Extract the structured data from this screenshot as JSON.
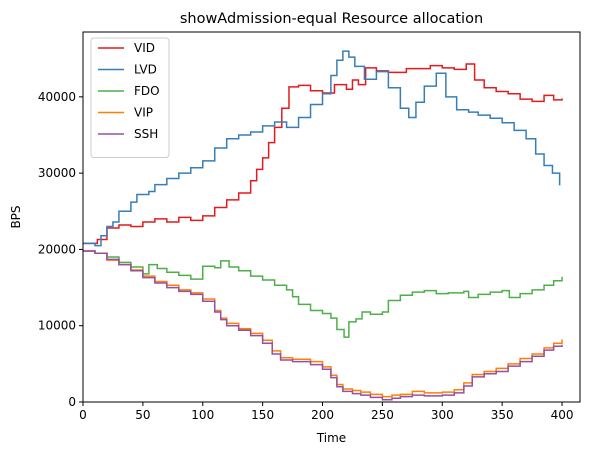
{
  "chart_data": {
    "type": "line",
    "title": "showAdmission-equal Resource allocation",
    "xlabel": "Time",
    "ylabel": "BPS",
    "xlim": [
      0,
      415
    ],
    "ylim": [
      0,
      48500
    ],
    "x_ticks": [
      0,
      50,
      100,
      150,
      200,
      250,
      300,
      350,
      400
    ],
    "y_ticks": [
      0,
      10000,
      20000,
      30000,
      40000
    ],
    "grid": false,
    "legend_position": "top-left",
    "step": true,
    "series": [
      {
        "name": "VID",
        "color": "#e41a1c",
        "points": [
          [
            0,
            20800
          ],
          [
            12,
            21300
          ],
          [
            20,
            22800
          ],
          [
            30,
            23200
          ],
          [
            40,
            23000
          ],
          [
            50,
            23600
          ],
          [
            60,
            24000
          ],
          [
            70,
            23600
          ],
          [
            80,
            24200
          ],
          [
            90,
            23800
          ],
          [
            100,
            24400
          ],
          [
            110,
            25500
          ],
          [
            120,
            26500
          ],
          [
            130,
            27400
          ],
          [
            140,
            29000
          ],
          [
            145,
            30500
          ],
          [
            150,
            32000
          ],
          [
            155,
            34000
          ],
          [
            160,
            36000
          ],
          [
            166,
            38500
          ],
          [
            172,
            41300
          ],
          [
            180,
            41500
          ],
          [
            190,
            40800
          ],
          [
            200,
            40500
          ],
          [
            210,
            41600
          ],
          [
            220,
            41000
          ],
          [
            225,
            42200
          ],
          [
            230,
            41600
          ],
          [
            236,
            43800
          ],
          [
            245,
            43400
          ],
          [
            255,
            43200
          ],
          [
            270,
            43700
          ],
          [
            290,
            44100
          ],
          [
            300,
            43800
          ],
          [
            310,
            43600
          ],
          [
            320,
            44300
          ],
          [
            327,
            42200
          ],
          [
            335,
            41200
          ],
          [
            345,
            40700
          ],
          [
            355,
            40400
          ],
          [
            365,
            39700
          ],
          [
            375,
            39400
          ],
          [
            385,
            40200
          ],
          [
            393,
            39600
          ],
          [
            400,
            39800
          ]
        ]
      },
      {
        "name": "LVD",
        "color": "#377eb8",
        "points": [
          [
            0,
            20800
          ],
          [
            10,
            20500
          ],
          [
            15,
            21800
          ],
          [
            20,
            23000
          ],
          [
            25,
            23600
          ],
          [
            30,
            25000
          ],
          [
            40,
            26200
          ],
          [
            45,
            27200
          ],
          [
            55,
            27600
          ],
          [
            60,
            28500
          ],
          [
            70,
            29300
          ],
          [
            80,
            30000
          ],
          [
            90,
            30700
          ],
          [
            100,
            31600
          ],
          [
            110,
            33300
          ],
          [
            120,
            34500
          ],
          [
            130,
            35000
          ],
          [
            140,
            35400
          ],
          [
            150,
            36200
          ],
          [
            160,
            36700
          ],
          [
            170,
            36000
          ],
          [
            180,
            37300
          ],
          [
            190,
            39000
          ],
          [
            200,
            40400
          ],
          [
            207,
            42800
          ],
          [
            212,
            44800
          ],
          [
            217,
            46000
          ],
          [
            222,
            45200
          ],
          [
            227,
            44000
          ],
          [
            235,
            42300
          ],
          [
            245,
            43300
          ],
          [
            255,
            41200
          ],
          [
            265,
            38500
          ],
          [
            272,
            37300
          ],
          [
            278,
            39300
          ],
          [
            285,
            41400
          ],
          [
            295,
            43100
          ],
          [
            303,
            40000
          ],
          [
            312,
            38300
          ],
          [
            322,
            38000
          ],
          [
            330,
            37600
          ],
          [
            340,
            37200
          ],
          [
            350,
            36600
          ],
          [
            360,
            35600
          ],
          [
            370,
            34500
          ],
          [
            378,
            32500
          ],
          [
            385,
            31000
          ],
          [
            392,
            30000
          ],
          [
            398,
            28400
          ]
        ]
      },
      {
        "name": "FDO",
        "color": "#4daf4a",
        "points": [
          [
            0,
            19800
          ],
          [
            10,
            19500
          ],
          [
            20,
            19000
          ],
          [
            30,
            18300
          ],
          [
            40,
            17700
          ],
          [
            50,
            16800
          ],
          [
            55,
            18000
          ],
          [
            62,
            17500
          ],
          [
            70,
            17000
          ],
          [
            80,
            16600
          ],
          [
            90,
            16100
          ],
          [
            100,
            17800
          ],
          [
            110,
            17600
          ],
          [
            115,
            18500
          ],
          [
            122,
            17700
          ],
          [
            130,
            17200
          ],
          [
            140,
            16500
          ],
          [
            150,
            16000
          ],
          [
            160,
            15300
          ],
          [
            170,
            14700
          ],
          [
            175,
            13800
          ],
          [
            180,
            12800
          ],
          [
            190,
            12000
          ],
          [
            200,
            11600
          ],
          [
            207,
            11000
          ],
          [
            212,
            9500
          ],
          [
            218,
            8500
          ],
          [
            222,
            10500
          ],
          [
            228,
            10900
          ],
          [
            233,
            11800
          ],
          [
            240,
            11500
          ],
          [
            250,
            11800
          ],
          [
            255,
            13300
          ],
          [
            265,
            14000
          ],
          [
            275,
            14400
          ],
          [
            285,
            14600
          ],
          [
            295,
            14200
          ],
          [
            305,
            14300
          ],
          [
            318,
            14500
          ],
          [
            322,
            13700
          ],
          [
            330,
            14100
          ],
          [
            340,
            14400
          ],
          [
            350,
            14600
          ],
          [
            356,
            13700
          ],
          [
            365,
            14200
          ],
          [
            375,
            14700
          ],
          [
            385,
            15300
          ],
          [
            393,
            15900
          ],
          [
            400,
            16400
          ]
        ]
      },
      {
        "name": "VIP",
        "color": "#ff7f00",
        "points": [
          [
            0,
            19800
          ],
          [
            10,
            19500
          ],
          [
            20,
            18600
          ],
          [
            30,
            18000
          ],
          [
            40,
            17300
          ],
          [
            50,
            16500
          ],
          [
            60,
            15800
          ],
          [
            70,
            15300
          ],
          [
            80,
            14700
          ],
          [
            90,
            14300
          ],
          [
            100,
            13500
          ],
          [
            110,
            12000
          ],
          [
            115,
            11000
          ],
          [
            120,
            10300
          ],
          [
            130,
            9600
          ],
          [
            140,
            9000
          ],
          [
            150,
            8100
          ],
          [
            158,
            6700
          ],
          [
            165,
            5800
          ],
          [
            175,
            5600
          ],
          [
            190,
            5300
          ],
          [
            200,
            4600
          ],
          [
            207,
            3500
          ],
          [
            212,
            2300
          ],
          [
            217,
            1700
          ],
          [
            225,
            1500
          ],
          [
            232,
            1300
          ],
          [
            240,
            1000
          ],
          [
            250,
            700
          ],
          [
            258,
            900
          ],
          [
            265,
            1000
          ],
          [
            275,
            1400
          ],
          [
            285,
            1200
          ],
          [
            300,
            1300
          ],
          [
            310,
            1600
          ],
          [
            318,
            2500
          ],
          [
            325,
            3600
          ],
          [
            335,
            4000
          ],
          [
            345,
            4400
          ],
          [
            355,
            5000
          ],
          [
            365,
            5700
          ],
          [
            375,
            6300
          ],
          [
            385,
            7100
          ],
          [
            393,
            7700
          ],
          [
            400,
            8200
          ]
        ]
      },
      {
        "name": "SSH",
        "color": "#984ea3",
        "points": [
          [
            0,
            19800
          ],
          [
            10,
            19500
          ],
          [
            20,
            18700
          ],
          [
            30,
            18000
          ],
          [
            40,
            17200
          ],
          [
            50,
            16300
          ],
          [
            60,
            15600
          ],
          [
            70,
            15000
          ],
          [
            80,
            14500
          ],
          [
            90,
            14100
          ],
          [
            100,
            13200
          ],
          [
            110,
            11800
          ],
          [
            115,
            10800
          ],
          [
            120,
            10000
          ],
          [
            130,
            9400
          ],
          [
            140,
            8700
          ],
          [
            150,
            7700
          ],
          [
            158,
            6300
          ],
          [
            165,
            5500
          ],
          [
            175,
            5300
          ],
          [
            190,
            4900
          ],
          [
            200,
            4300
          ],
          [
            207,
            3200
          ],
          [
            212,
            2000
          ],
          [
            217,
            1400
          ],
          [
            225,
            1100
          ],
          [
            232,
            900
          ],
          [
            240,
            600
          ],
          [
            250,
            300
          ],
          [
            258,
            500
          ],
          [
            265,
            700
          ],
          [
            275,
            900
          ],
          [
            285,
            800
          ],
          [
            300,
            900
          ],
          [
            310,
            1200
          ],
          [
            318,
            2100
          ],
          [
            325,
            3300
          ],
          [
            335,
            3700
          ],
          [
            345,
            4000
          ],
          [
            355,
            4700
          ],
          [
            365,
            5300
          ],
          [
            375,
            6000
          ],
          [
            385,
            6800
          ],
          [
            393,
            7300
          ],
          [
            400,
            7500
          ]
        ]
      }
    ]
  }
}
